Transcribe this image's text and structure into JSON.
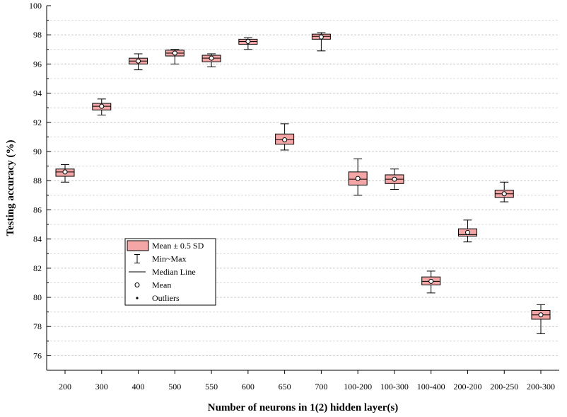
{
  "chart_data": {
    "type": "box",
    "xlabel": "Number of neurons in 1(2) hidden layer(s)",
    "ylabel": "Testing accuracy (%)",
    "ylim": [
      75,
      100
    ],
    "yticks": [
      "76",
      "78",
      "80",
      "82",
      "84",
      "86",
      "88",
      "90",
      "92",
      "94",
      "96",
      "98",
      "100"
    ],
    "grid": "horizontal dashed",
    "box_color": "#f4a6a6",
    "categories": [
      "200",
      "300",
      "400",
      "500",
      "550",
      "600",
      "650",
      "700",
      "100-200",
      "100-300",
      "100-400",
      "200-200",
      "200-250",
      "200-300"
    ],
    "boxes": [
      {
        "min": 87.9,
        "q1": 88.3,
        "median": 88.6,
        "mean": 88.6,
        "q3": 88.8,
        "max": 89.1
      },
      {
        "min": 92.5,
        "q1": 92.85,
        "median": 93.1,
        "mean": 93.1,
        "q3": 93.3,
        "max": 93.6
      },
      {
        "min": 95.6,
        "q1": 96.0,
        "median": 96.2,
        "mean": 96.2,
        "q3": 96.4,
        "max": 96.7
      },
      {
        "min": 96.0,
        "q1": 96.55,
        "median": 96.75,
        "mean": 96.75,
        "q3": 96.95,
        "max": 97.0
      },
      {
        "min": 95.8,
        "q1": 96.15,
        "median": 96.4,
        "mean": 96.4,
        "q3": 96.6,
        "max": 96.7
      },
      {
        "min": 97.0,
        "q1": 97.35,
        "median": 97.55,
        "mean": 97.55,
        "q3": 97.7,
        "max": 97.8
      },
      {
        "min": 90.1,
        "q1": 90.5,
        "median": 90.8,
        "mean": 90.8,
        "q3": 91.2,
        "max": 91.9
      },
      {
        "min": 96.9,
        "q1": 97.7,
        "median": 97.9,
        "mean": 97.85,
        "q3": 98.05,
        "max": 98.15
      },
      {
        "min": 87.0,
        "q1": 87.7,
        "median": 88.1,
        "mean": 88.15,
        "q3": 88.6,
        "max": 89.5
      },
      {
        "min": 87.4,
        "q1": 87.8,
        "median": 88.1,
        "mean": 88.1,
        "q3": 88.4,
        "max": 88.8
      },
      {
        "min": 80.3,
        "q1": 80.85,
        "median": 81.1,
        "mean": 81.1,
        "q3": 81.4,
        "max": 81.8
      },
      {
        "min": 83.8,
        "q1": 84.2,
        "median": 84.3,
        "mean": 84.45,
        "q3": 84.7,
        "max": 85.3
      },
      {
        "min": 86.55,
        "q1": 86.85,
        "median": 87.1,
        "mean": 87.1,
        "q3": 87.35,
        "max": 87.9
      },
      {
        "min": 77.5,
        "q1": 78.5,
        "median": 78.8,
        "mean": 78.8,
        "q3": 79.1,
        "max": 79.5
      }
    ],
    "legend": {
      "placement": "center-left",
      "entries": [
        "Mean ± 0.5 SD",
        "Min~Max",
        "Median Line",
        "Mean",
        "Outliers"
      ]
    }
  }
}
